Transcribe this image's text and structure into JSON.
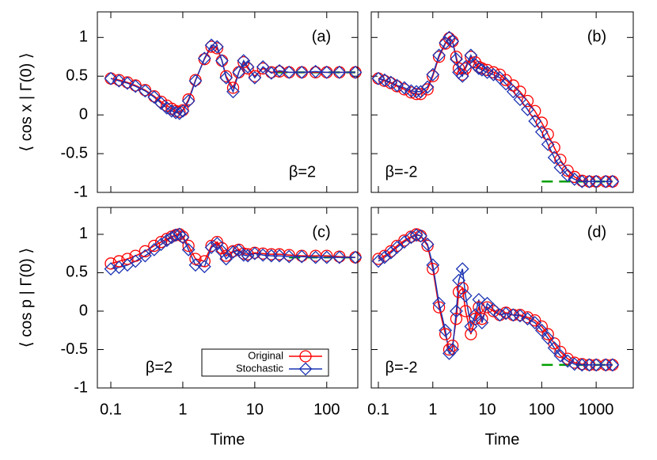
{
  "chart_data": [
    {
      "type": "line",
      "panel_label": "(a)",
      "annotation": "β=2",
      "annotation_position": "bottom-right",
      "ylabel": "⟨ cos x | Γ(0) ⟩",
      "log_x": true,
      "xlim": [
        0.065,
        270
      ],
      "xticks": [
        0.1,
        1,
        10,
        100
      ],
      "ylim": [
        -1,
        1.33
      ],
      "yticks": [
        -1,
        -0.5,
        0,
        0.5,
        1
      ],
      "x": [
        0.1,
        0.13,
        0.17,
        0.22,
        0.3,
        0.4,
        0.5,
        0.6,
        0.7,
        0.8,
        0.9,
        1,
        1.2,
        1.5,
        2,
        2.5,
        3,
        3.5,
        4,
        5,
        6,
        7,
        8,
        10,
        13,
        17,
        22,
        30,
        45,
        70,
        100,
        150,
        250
      ],
      "series": [
        {
          "color": "#ff0000",
          "marker": "circle",
          "values": [
            0.47,
            0.45,
            0.42,
            0.38,
            0.32,
            0.24,
            0.17,
            0.12,
            0.08,
            0.05,
            0.04,
            0.06,
            0.2,
            0.45,
            0.72,
            0.88,
            0.86,
            0.7,
            0.5,
            0.35,
            0.55,
            0.68,
            0.6,
            0.5,
            0.6,
            0.55,
            0.56,
            0.55,
            0.55,
            0.55,
            0.55,
            0.55,
            0.55
          ]
        },
        {
          "color": "#1a33b3",
          "marker": "diamond",
          "values": [
            0.47,
            0.44,
            0.41,
            0.37,
            0.31,
            0.23,
            0.15,
            0.09,
            0.05,
            0.03,
            0.02,
            0.05,
            0.18,
            0.44,
            0.73,
            0.9,
            0.88,
            0.7,
            0.48,
            0.3,
            0.55,
            0.7,
            0.62,
            0.48,
            0.62,
            0.54,
            0.57,
            0.55,
            0.55,
            0.56,
            0.55,
            0.55,
            0.55
          ]
        }
      ],
      "reference": {
        "color": "#00a000",
        "x": [
          20,
          250
        ],
        "values": [
          0.55,
          0.55
        ]
      }
    },
    {
      "type": "line",
      "panel_label": "(b)",
      "annotation": "β=-2",
      "annotation_position": "bottom-left",
      "log_x": true,
      "xlim": [
        0.074,
        4800
      ],
      "xticks": [
        0.1,
        1,
        10,
        100,
        1000
      ],
      "ylim": [
        -1,
        1.33
      ],
      "yticks": [
        -1,
        -0.5,
        0,
        0.5,
        1
      ],
      "x": [
        0.1,
        0.13,
        0.17,
        0.22,
        0.3,
        0.4,
        0.5,
        0.6,
        0.8,
        1,
        1.3,
        1.7,
        2,
        2.3,
        2.7,
        3,
        3.5,
        4,
        5,
        6,
        7,
        8,
        10,
        13,
        17,
        22,
        30,
        40,
        55,
        75,
        100,
        130,
        170,
        220,
        300,
        400,
        550,
        750,
        1000,
        1500,
        2000
      ],
      "series": [
        {
          "color": "#ff0000",
          "marker": "circle",
          "values": [
            0.47,
            0.44,
            0.41,
            0.37,
            0.33,
            0.29,
            0.27,
            0.27,
            0.33,
            0.5,
            0.75,
            0.92,
            0.99,
            0.95,
            0.75,
            0.6,
            0.52,
            0.6,
            0.75,
            0.68,
            0.62,
            0.6,
            0.58,
            0.55,
            0.52,
            0.45,
            0.38,
            0.3,
            0.18,
            0.05,
            -0.1,
            -0.25,
            -0.42,
            -0.58,
            -0.72,
            -0.8,
            -0.85,
            -0.86,
            -0.86,
            -0.86,
            -0.86
          ]
        },
        {
          "color": "#1a33b3",
          "marker": "diamond",
          "values": [
            0.47,
            0.45,
            0.42,
            0.38,
            0.35,
            0.31,
            0.3,
            0.3,
            0.36,
            0.52,
            0.77,
            0.93,
            1.0,
            0.95,
            0.72,
            0.55,
            0.5,
            0.62,
            0.77,
            0.65,
            0.6,
            0.58,
            0.55,
            0.52,
            0.48,
            0.4,
            0.3,
            0.2,
            0.07,
            -0.08,
            -0.22,
            -0.38,
            -0.55,
            -0.68,
            -0.78,
            -0.83,
            -0.86,
            -0.86,
            -0.86,
            -0.86,
            -0.86
          ]
        }
      ],
      "reference": {
        "color": "#00a000",
        "x": [
          100,
          2000
        ],
        "values": [
          -0.86,
          -0.86
        ]
      }
    },
    {
      "type": "line",
      "panel_label": "(c)",
      "annotation": "β=2",
      "annotation_position": "bottom-left",
      "ylabel": "⟨ cos p | Γ(0) ⟩",
      "xlabel": "Time",
      "log_x": true,
      "legend": true,
      "xlim": [
        0.065,
        270
      ],
      "xticks": [
        0.1,
        1,
        10,
        100
      ],
      "ylim": [
        -1,
        1.35
      ],
      "yticks": [
        -1,
        -0.5,
        0,
        0.5,
        1
      ],
      "x": [
        0.1,
        0.13,
        0.17,
        0.22,
        0.3,
        0.4,
        0.5,
        0.6,
        0.7,
        0.8,
        0.9,
        1,
        1.2,
        1.5,
        2,
        2.5,
        3,
        3.5,
        4,
        5,
        6,
        7,
        8,
        10,
        13,
        17,
        22,
        30,
        45,
        70,
        100,
        150,
        250
      ],
      "series": [
        {
          "name": "Original",
          "color": "#ff0000",
          "marker": "circle",
          "values": [
            0.62,
            0.65,
            0.68,
            0.72,
            0.78,
            0.85,
            0.9,
            0.94,
            0.97,
            0.99,
            1.0,
            0.97,
            0.85,
            0.68,
            0.65,
            0.85,
            0.9,
            0.82,
            0.72,
            0.78,
            0.8,
            0.75,
            0.74,
            0.76,
            0.75,
            0.74,
            0.74,
            0.73,
            0.72,
            0.72,
            0.72,
            0.71,
            0.7
          ]
        },
        {
          "name": "Stochastic",
          "color": "#1a33b3",
          "marker": "diamond",
          "values": [
            0.55,
            0.57,
            0.6,
            0.65,
            0.72,
            0.8,
            0.87,
            0.92,
            0.96,
            0.99,
            1.0,
            0.96,
            0.8,
            0.6,
            0.58,
            0.83,
            0.88,
            0.78,
            0.68,
            0.77,
            0.79,
            0.73,
            0.72,
            0.75,
            0.73,
            0.72,
            0.72,
            0.71,
            0.71,
            0.7,
            0.7,
            0.7,
            0.7
          ]
        }
      ],
      "reference": {
        "color": "#00a000",
        "x": [
          30,
          250
        ],
        "values": [
          0.7,
          0.7
        ]
      }
    },
    {
      "type": "line",
      "panel_label": "(d)",
      "annotation": "β=-2",
      "annotation_position": "bottom-left",
      "xlabel": "Time",
      "log_x": true,
      "xlim": [
        0.074,
        4800
      ],
      "xticks": [
        0.1,
        1,
        10,
        100,
        1000
      ],
      "ylim": [
        -1,
        1.35
      ],
      "yticks": [
        -1,
        -0.5,
        0,
        0.5,
        1
      ],
      "x": [
        0.1,
        0.13,
        0.17,
        0.22,
        0.3,
        0.4,
        0.5,
        0.6,
        0.8,
        1,
        1.3,
        1.7,
        2,
        2.3,
        2.7,
        3,
        3.5,
        4,
        5,
        6,
        7,
        8,
        10,
        13,
        17,
        22,
        30,
        40,
        55,
        75,
        100,
        130,
        170,
        220,
        300,
        400,
        550,
        750,
        1000,
        1500,
        2000
      ],
      "series": [
        {
          "color": "#ff0000",
          "marker": "circle",
          "values": [
            0.68,
            0.72,
            0.78,
            0.85,
            0.92,
            0.97,
            1.0,
            0.98,
            0.85,
            0.55,
            0.05,
            -0.3,
            -0.5,
            -0.45,
            -0.1,
            0.25,
            0.3,
            0.0,
            -0.3,
            -0.1,
            0.05,
            -0.1,
            0.05,
            0.0,
            -0.05,
            -0.02,
            -0.05,
            -0.05,
            -0.08,
            -0.12,
            -0.2,
            -0.3,
            -0.42,
            -0.53,
            -0.62,
            -0.67,
            -0.69,
            -0.7,
            -0.7,
            -0.7,
            -0.7
          ]
        },
        {
          "color": "#1a33b3",
          "marker": "diamond",
          "values": [
            0.65,
            0.7,
            0.76,
            0.83,
            0.9,
            0.96,
            0.99,
            0.98,
            0.87,
            0.6,
            0.1,
            -0.25,
            -0.55,
            -0.5,
            0.0,
            0.4,
            0.55,
            0.2,
            -0.2,
            -0.05,
            0.15,
            -0.15,
            0.1,
            0.02,
            -0.05,
            -0.03,
            -0.05,
            -0.06,
            -0.1,
            -0.15,
            -0.25,
            -0.35,
            -0.48,
            -0.58,
            -0.65,
            -0.69,
            -0.7,
            -0.7,
            -0.7,
            -0.7,
            -0.7
          ]
        }
      ],
      "reference": {
        "color": "#00a000",
        "x": [
          100,
          2000
        ],
        "values": [
          -0.7,
          -0.7
        ]
      }
    }
  ]
}
